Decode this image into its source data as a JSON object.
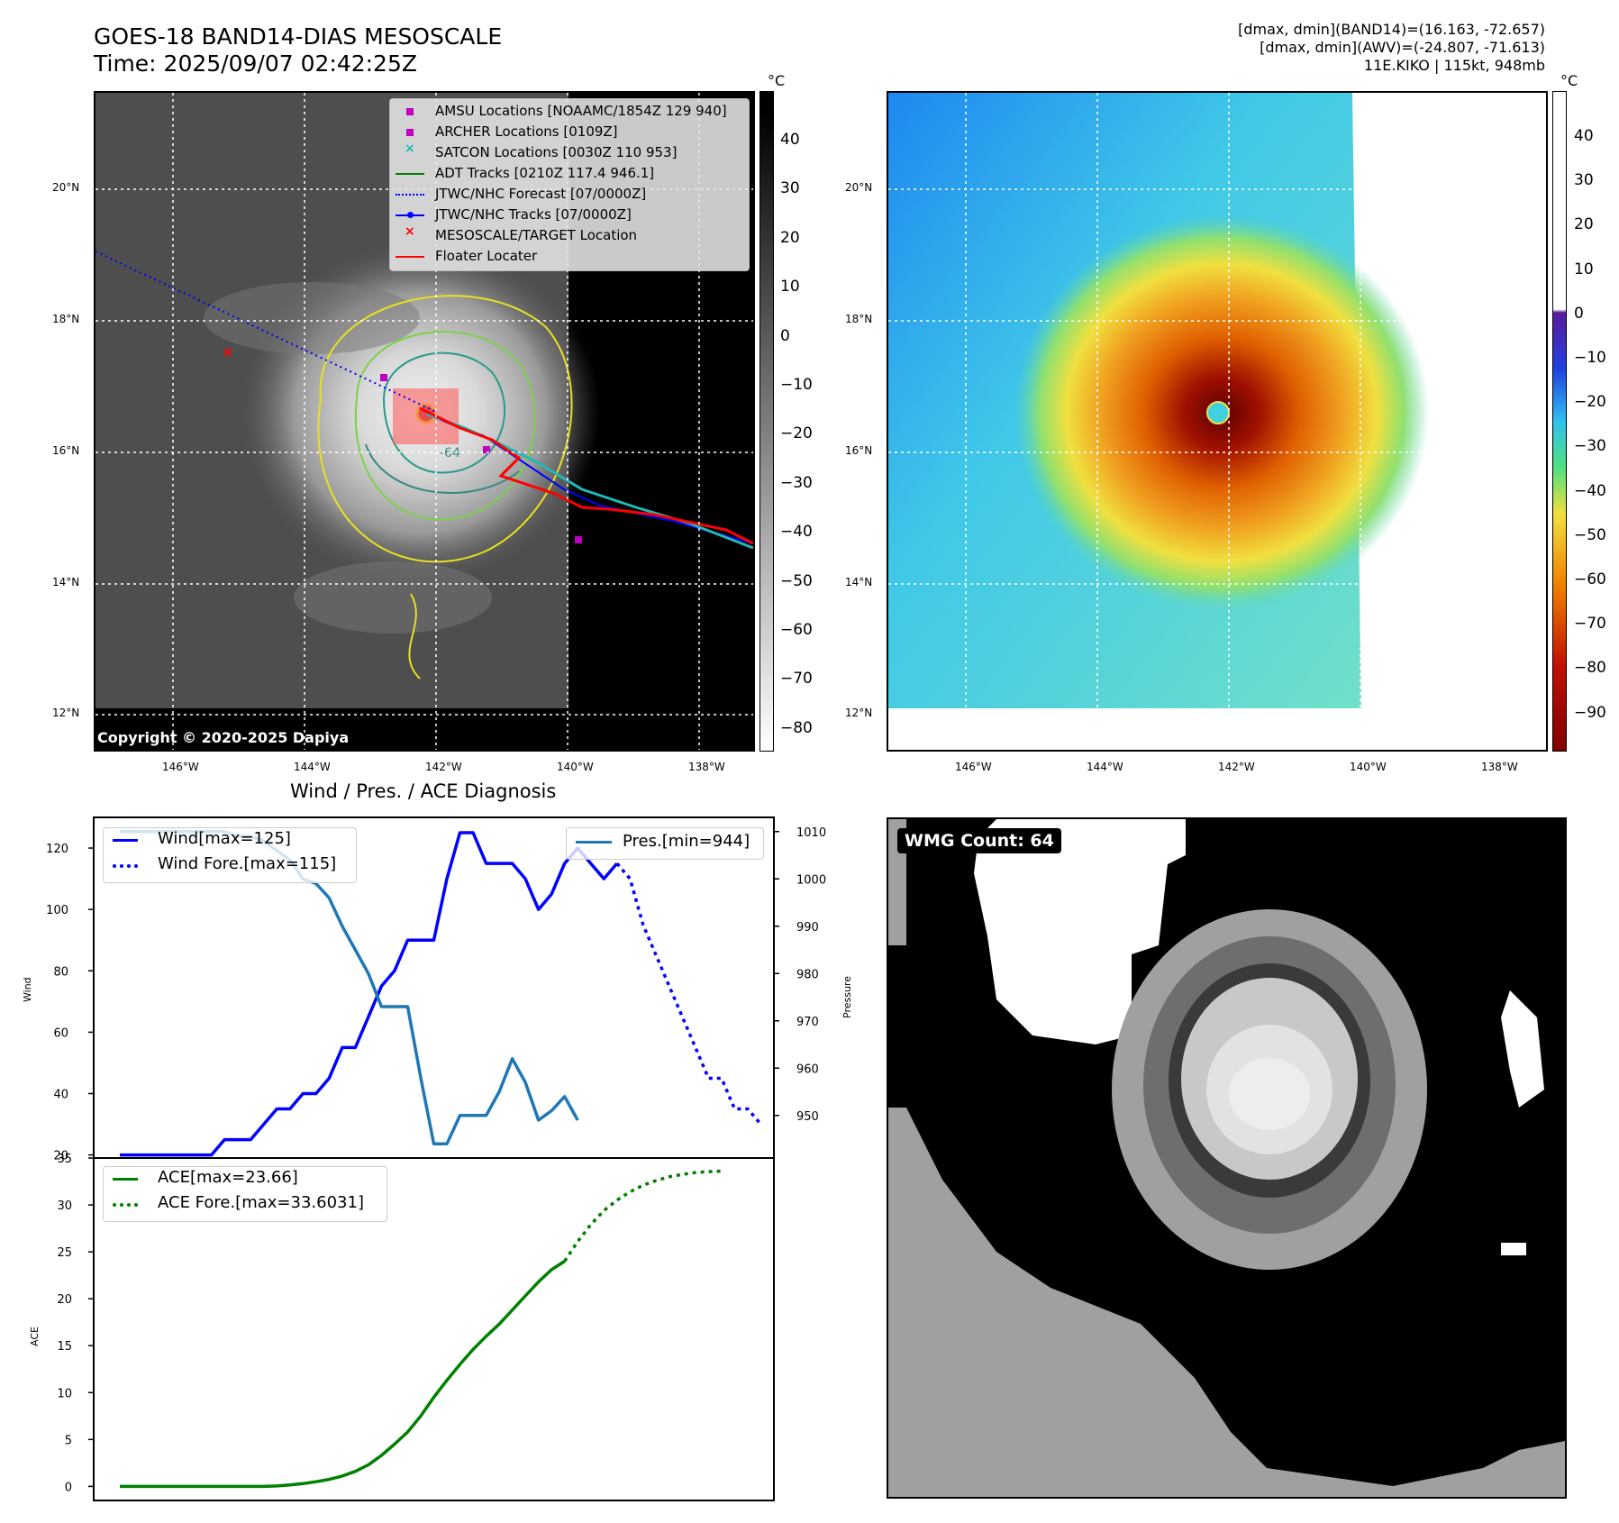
{
  "header": {
    "title_line1": "GOES-18 BAND14-DIAS MESOSCALE",
    "title_line2": "Time: 2025/09/07 02:42:25Z",
    "info_line1": "[dmax, dmin](BAND14)=(16.163, -72.657)",
    "info_line2": "[dmax, dmin](AWV)=(-24.807, -71.613)",
    "info_line3": "11E.KIKO | 115kt, 948mb"
  },
  "map_axes": {
    "lat_labels": [
      "20°N",
      "18°N",
      "16°N",
      "14°N",
      "12°N"
    ],
    "lon_labels": [
      "146°W",
      "144°W",
      "142°W",
      "140°W",
      "138°W"
    ]
  },
  "map_left": {
    "copyright": "Copyright © 2020-2025 Dapiya",
    "contour_label": "-64",
    "colorbar_unit": "°C",
    "colorbar_ticks": [
      "40",
      "30",
      "20",
      "10",
      "0",
      "−10",
      "−20",
      "−30",
      "−40",
      "−50",
      "−60",
      "−70",
      "−80"
    ],
    "legend": [
      {
        "label": "AMSU Locations [NOAAMC/1854Z 129 940]",
        "symbol": "square",
        "color": "#c000c0"
      },
      {
        "label": "ARCHER Locations [0109Z]",
        "symbol": "square",
        "color": "#c000c0"
      },
      {
        "label": "SATCON Locations [0030Z 110 953]",
        "symbol": "x",
        "color": "#20b8b8"
      },
      {
        "label": "ADT Tracks [0210Z 117.4 946.1]",
        "symbol": "line",
        "color": "#008000"
      },
      {
        "label": "JTWC/NHC Forecast [07/0000Z]",
        "symbol": "dotted",
        "color": "#0000ff"
      },
      {
        "label": "JTWC/NHC Tracks [07/0000Z]",
        "symbol": "line-dot",
        "color": "#0000ff"
      },
      {
        "label": "MESOSCALE/TARGET Location",
        "symbol": "x",
        "color": "#ff0000"
      },
      {
        "label": "Floater Locater",
        "symbol": "line",
        "color": "#ff0000"
      }
    ]
  },
  "map_right": {
    "colorbar_unit": "°C",
    "colorbar_ticks": [
      "40",
      "30",
      "20",
      "10",
      "0",
      "−10",
      "−20",
      "−30",
      "−40",
      "−50",
      "−60",
      "−70",
      "−80",
      "−90"
    ]
  },
  "wmg": {
    "label": "WMG Count: 64"
  },
  "chart_data": [
    {
      "type": "line",
      "title": "Wind / Pres. / ACE Diagnosis",
      "ylabel": "Wind",
      "ylabel_right": "Pressure",
      "ylim": [
        19,
        130
      ],
      "ylim_right": [
        941,
        1013
      ],
      "y_ticks": [
        "120",
        "100",
        "80",
        "60",
        "40",
        "20"
      ],
      "y_ticks_right": [
        "1010",
        "1000",
        "990",
        "980",
        "970",
        "960",
        "950"
      ],
      "x_index_range": [
        -2,
        50
      ],
      "series": [
        {
          "name": "Wind[max=125]",
          "axis": "left",
          "style": "solid",
          "color": "#0000ff",
          "values": [
            20,
            20,
            20,
            20,
            20,
            20,
            20,
            20,
            25,
            25,
            25,
            30,
            35,
            35,
            40,
            40,
            45,
            55,
            55,
            65,
            75,
            80,
            90,
            90,
            90,
            110,
            125,
            125,
            115,
            115,
            115,
            110,
            100,
            105,
            115,
            120,
            115,
            110,
            115
          ]
        },
        {
          "name": "Wind Fore.[max=115]",
          "axis": "left",
          "style": "dotted",
          "color": "#0000ff",
          "x_start": 38,
          "values": [
            115,
            110,
            95,
            85,
            75,
            65,
            55,
            45,
            45,
            35,
            35,
            30
          ]
        },
        {
          "name": "Pres.[min=944]",
          "axis": "right",
          "style": "solid",
          "color": "#1f77b4",
          "values": [
            1010,
            1010,
            1010,
            1010,
            1010,
            1010,
            1010,
            1010,
            1010,
            1009,
            1009,
            1008,
            1006,
            1004,
            1000,
            999,
            996,
            990,
            985,
            980,
            973,
            973,
            973,
            958,
            944,
            944,
            950,
            950,
            950,
            955,
            962,
            957,
            949,
            951,
            954,
            949
          ]
        }
      ]
    },
    {
      "type": "line",
      "ylabel": "ACE",
      "ylim": [
        -1.5,
        35
      ],
      "y_ticks": [
        "35",
        "30",
        "25",
        "20",
        "15",
        "10",
        "5",
        "0"
      ],
      "x_index_range": [
        -2,
        50
      ],
      "series": [
        {
          "name": "ACE[max=23.66]",
          "style": "solid",
          "color": "#008000",
          "values": [
            0,
            0,
            0,
            0,
            0,
            0,
            0,
            0,
            0,
            0,
            0,
            0,
            0.05,
            0.15,
            0.3,
            0.5,
            0.75,
            1.1,
            1.6,
            2.3,
            3.3,
            4.5,
            5.8,
            7.5,
            9.5,
            11.3,
            13,
            14.6,
            16,
            17.3,
            18.8,
            20.3,
            21.8,
            23.1,
            24
          ]
        },
        {
          "name": "ACE Fore.[max=33.6031]",
          "style": "dotted",
          "color": "#008000",
          "x_start": 34,
          "values": [
            24,
            26.1,
            27.9,
            29.4,
            30.5,
            31.4,
            32.1,
            32.6,
            33.0,
            33.25,
            33.45,
            33.55,
            33.6
          ]
        }
      ]
    }
  ]
}
